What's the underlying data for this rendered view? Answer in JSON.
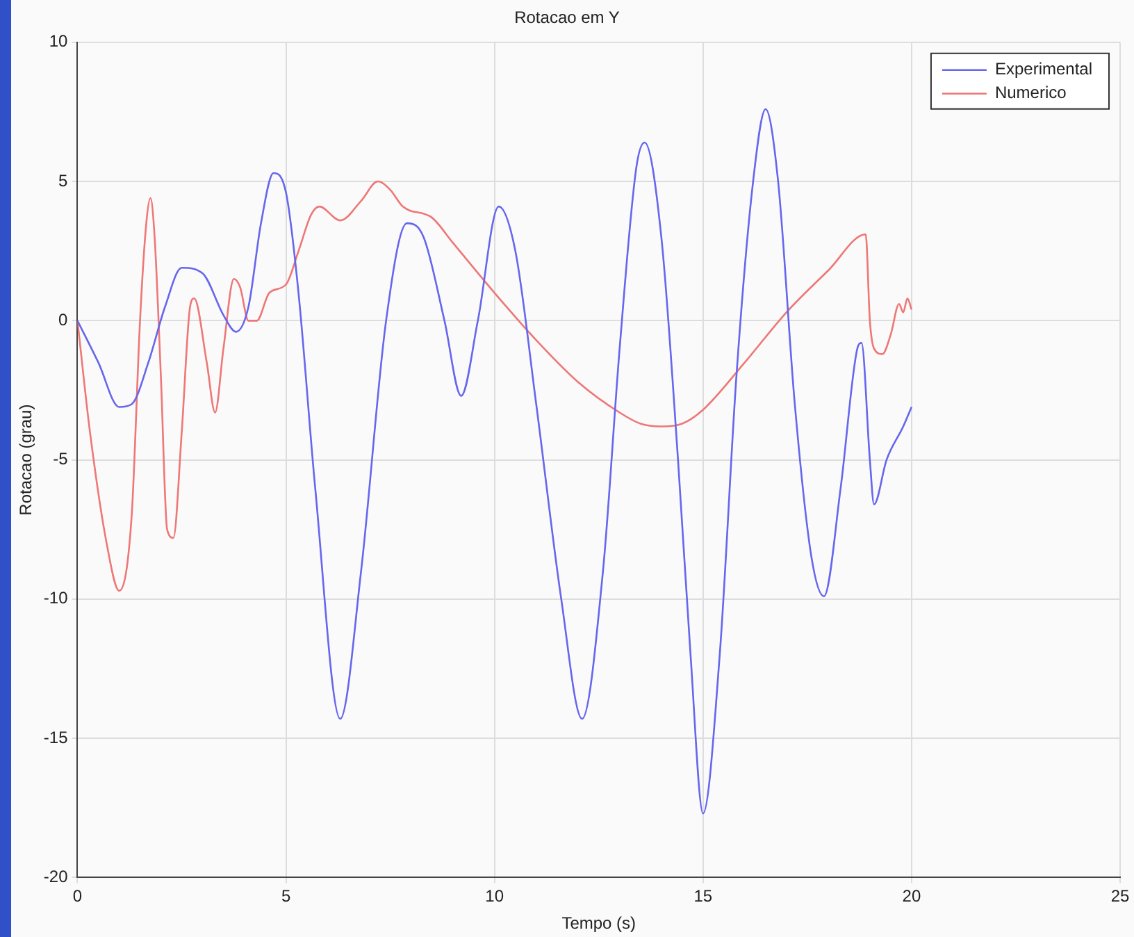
{
  "chart_data": {
    "type": "line",
    "title": "Rotacao em Y",
    "xlabel": "Tempo (s)",
    "ylabel": "Rotacao (grau)",
    "xlim": [
      0,
      25
    ],
    "xticks": [
      0,
      5,
      10,
      15,
      20,
      25
    ],
    "ylim": [
      -20,
      10
    ],
    "yticks": [
      -20,
      -15,
      -10,
      -5,
      0,
      5,
      10
    ],
    "grid": true,
    "legend": "top right",
    "marker": "none",
    "line_style": "solid",
    "series": [
      {
        "name": "Experimental",
        "color": "#6666ee",
        "x": [
          0,
          0.5,
          1,
          1.3,
          1.7,
          2.1,
          2.5,
          3,
          3.5,
          3.8,
          4.1,
          4.4,
          4.7,
          5,
          5.3,
          5.7,
          6.3,
          6.8,
          7.4,
          7.9,
          8.3,
          8.8,
          9.2,
          9.6,
          10.1,
          10.5,
          11,
          11.6,
          12.1,
          12.6,
          13,
          13.4,
          13.6,
          14,
          14.4,
          14.7,
          15,
          15.4,
          15.8,
          16.2,
          16.5,
          16.8,
          17.2,
          17.6,
          17.9,
          18.3,
          18.7,
          18.8,
          19,
          19.1,
          19.4,
          19.8,
          20
        ],
        "values": [
          0,
          -1.5,
          -3.1,
          -3,
          -1.5,
          0.5,
          1.9,
          1.7,
          0.2,
          -0.4,
          0.5,
          3.5,
          5.3,
          4.6,
          1,
          -6,
          -14.3,
          -9,
          0,
          3.5,
          3,
          0,
          -2.7,
          0,
          4.1,
          2.5,
          -3,
          -10,
          -14.3,
          -9,
          -1,
          5.5,
          6.4,
          3,
          -5,
          -12,
          -17.7,
          -12,
          -2,
          5,
          7.6,
          5,
          -3,
          -8.5,
          -9.9,
          -6,
          -1,
          -0.8,
          -5,
          -6.6,
          -5,
          -3.8,
          -3.1
        ]
      },
      {
        "name": "Numerico",
        "color": "#ee7777",
        "x": [
          0,
          0.3,
          0.7,
          1,
          1.3,
          1.5,
          1.65,
          1.75,
          1.85,
          2,
          2.15,
          2.3,
          2.5,
          2.7,
          2.8,
          3.1,
          3.3,
          3.5,
          3.75,
          3.9,
          4.1,
          4.3,
          4.6,
          5,
          5.3,
          5.6,
          5.8,
          6.3,
          6.8,
          7.2,
          7.5,
          7.8,
          8.5,
          9,
          10,
          11,
          12,
          13,
          13.5,
          14,
          14.5,
          15,
          16,
          17,
          18,
          18.9,
          19,
          19.1,
          19.3,
          19.5,
          19.7,
          19.8,
          19.9,
          20
        ],
        "values": [
          0,
          -4,
          -8,
          -9.7,
          -7,
          0,
          3.5,
          4.4,
          3,
          -2,
          -7.5,
          -7.8,
          -4,
          0.5,
          0.8,
          -1.5,
          -3.3,
          -1,
          1.5,
          1.2,
          0,
          0,
          1,
          1.3,
          2.5,
          3.8,
          4.1,
          3.6,
          4.3,
          5,
          4.7,
          4.1,
          3.7,
          2.8,
          1,
          -0.7,
          -2.2,
          -3.3,
          -3.7,
          -3.8,
          -3.7,
          -3.2,
          -1.5,
          0.3,
          1.8,
          3.1,
          0,
          -1,
          -1.2,
          -0.5,
          0.6,
          0.3,
          0.8,
          0.4
        ]
      }
    ]
  }
}
